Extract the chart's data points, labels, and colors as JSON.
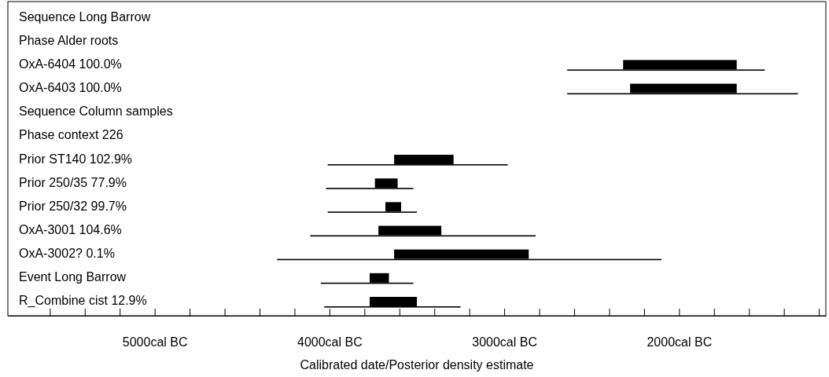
{
  "chart_data": {
    "type": "bar",
    "orientation": "horizontal",
    "xlabel": "Calibrated date/Posterior density estimate",
    "categories": [
      "Sequence Long Barrow",
      "Phase Alder roots",
      "OxA-6404  100.0%",
      "OxA-6403  100.0%",
      "Sequence Column samples",
      "Phase context 226",
      "Prior ST140  102.9%",
      "Prior 250/35   77.9%",
      "Prior 250/32   99.7%",
      "OxA-3001  104.6%",
      "OxA-3002?   0.1%",
      "Event Long Barrow",
      "R_Combine cist  12.9%"
    ],
    "series": [
      {
        "color": "#000000",
        "base": [
          null,
          null,
          2320,
          2280,
          null,
          null,
          3630,
          3740,
          3680,
          3720,
          3630,
          3770,
          3770
        ],
        "values": [
          null,
          null,
          -650,
          -610,
          null,
          null,
          -340,
          -130,
          -90,
          -360,
          -770,
          -110,
          -270
        ]
      },
      {
        "color": "#000000",
        "base": [
          null,
          null,
          2640,
          2640,
          null,
          null,
          4010,
          4020,
          4010,
          4110,
          4300,
          4050,
          4030
        ],
        "values": [
          null,
          null,
          -1130,
          -1320,
          null,
          null,
          -1030,
          -500,
          -510,
          -1290,
          -2200,
          -530,
          -780
        ]
      }
    ],
    "xlim": [
      5840,
      1160
    ],
    "xticks": [
      {
        "value": 5600,
        "label": null
      },
      {
        "value": 5400,
        "label": null
      },
      {
        "value": 5200,
        "label": null
      },
      {
        "value": 5000,
        "label": "5000cal BC"
      },
      {
        "value": 4800,
        "label": null
      },
      {
        "value": 4600,
        "label": null
      },
      {
        "value": 4400,
        "label": null
      },
      {
        "value": 4200,
        "label": null
      },
      {
        "value": 4000,
        "label": "4000cal BC"
      },
      {
        "value": 3800,
        "label": null
      },
      {
        "value": 3600,
        "label": null
      },
      {
        "value": 3400,
        "label": null
      },
      {
        "value": 3200,
        "label": null
      },
      {
        "value": 3000,
        "label": "3000cal BC"
      },
      {
        "value": 2800,
        "label": null
      },
      {
        "value": 2600,
        "label": null
      },
      {
        "value": 2400,
        "label": null
      },
      {
        "value": 2200,
        "label": null
      },
      {
        "value": 2000,
        "label": "2000cal BC"
      },
      {
        "value": 1800,
        "label": null
      },
      {
        "value": 1600,
        "label": null
      },
      {
        "value": 1400,
        "label": null
      },
      {
        "value": 1200,
        "label": null
      }
    ],
    "grid": false
  }
}
